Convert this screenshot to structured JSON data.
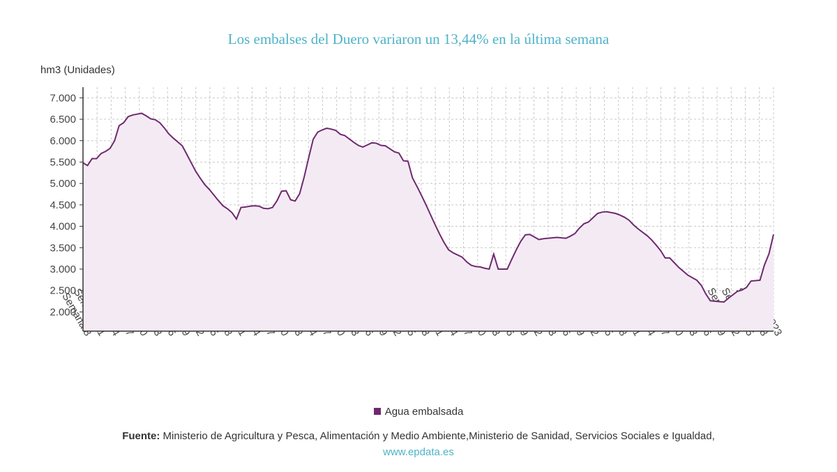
{
  "chart_data": {
    "type": "area",
    "title": "Los embalses del Duero variaron un 13,44% en la última semana",
    "ylabel": "hm3 (Unidades)",
    "xlabel": "",
    "ylim": [
      1550,
      7250
    ],
    "yticks": [
      2000,
      2500,
      3000,
      3500,
      4000,
      4500,
      5000,
      5500,
      6000,
      6500,
      7000
    ],
    "ytick_labels": [
      "2.000",
      "2.500",
      "3.000",
      "3.500",
      "4.000",
      "4.500",
      "5.000",
      "5.500",
      "6.000",
      "6.500",
      "7.000"
    ],
    "grid": true,
    "legend_position": "bottom",
    "x_labels": [
      "Semana 8",
      "Semana 11",
      "Semana 14",
      "Semana 17",
      "Semana 20",
      "Semana 23",
      "Semana 26",
      "Semana 29",
      "Semana 32",
      "Semana 35",
      "Semana 38",
      "Semana 41",
      "Semana 44",
      "Semana 47",
      "Semana 50",
      "Semana 53",
      "Semana 4",
      "Semana 7",
      "Semana 10",
      "Semana 13",
      "Semana 16",
      "Semana 19",
      "Semana 22",
      "Semana 25",
      "Semana 28",
      "Semana 31",
      "Semana 34",
      "Semana 37",
      "Semana 40",
      "Semana 43",
      "Semana 46",
      "Semana 49",
      "Semana 52",
      "Semana 3",
      "Semana 6",
      "Semana 9",
      "Semana 12",
      "Semana 15",
      "Semana 18",
      "Semana 21",
      "Semana 24",
      "Semana 27",
      "Semana 30",
      "Semana 33",
      "Semana 36",
      "Semana 39",
      "Semana 42",
      "Semana 45",
      "Semana 48",
      "2023"
    ],
    "series": [
      {
        "name": "Agua embalsada",
        "color": "#6e2a6e",
        "values": [
          5480,
          5420,
          5580,
          5580,
          5700,
          5750,
          5820,
          6000,
          6350,
          6420,
          6560,
          6600,
          6620,
          6640,
          6580,
          6510,
          6490,
          6420,
          6300,
          6160,
          6060,
          5970,
          5880,
          5680,
          5480,
          5280,
          5120,
          4970,
          4860,
          4730,
          4600,
          4480,
          4410,
          4320,
          4170,
          4440,
          4450,
          4470,
          4480,
          4470,
          4420,
          4410,
          4440,
          4600,
          4820,
          4830,
          4620,
          4590,
          4760,
          5150,
          5600,
          6030,
          6200,
          6250,
          6290,
          6270,
          6240,
          6150,
          6120,
          6040,
          5960,
          5890,
          5850,
          5900,
          5950,
          5940,
          5890,
          5880,
          5810,
          5740,
          5710,
          5530,
          5520,
          5130,
          4930,
          4720,
          4500,
          4270,
          4040,
          3820,
          3620,
          3450,
          3380,
          3330,
          3280,
          3170,
          3090,
          3060,
          3050,
          3020,
          3000,
          3350,
          3000,
          3000,
          3000,
          3230,
          3450,
          3650,
          3800,
          3810,
          3750,
          3690,
          3710,
          3720,
          3730,
          3740,
          3730,
          3720,
          3770,
          3830,
          3960,
          4060,
          4100,
          4200,
          4300,
          4330,
          4340,
          4320,
          4300,
          4260,
          4210,
          4140,
          4030,
          3940,
          3860,
          3780,
          3680,
          3560,
          3430,
          3260,
          3260,
          3150,
          3040,
          2950,
          2860,
          2800,
          2740,
          2620,
          2420,
          2260,
          2250,
          2240,
          2230,
          2320,
          2400,
          2480,
          2510,
          2570,
          2720,
          2730,
          2740,
          3100,
          3360,
          3810
        ]
      }
    ]
  },
  "legend": {
    "label": "Agua embalsada",
    "color": "#6e2a6e"
  },
  "footer": {
    "source_label": "Fuente:",
    "source_text": " Ministerio de Agricultura y Pesca, Alimentación y Medio Ambiente,Ministerio de Sanidad, Servicios Sociales e Igualdad,",
    "site": "www.epdata.es"
  }
}
